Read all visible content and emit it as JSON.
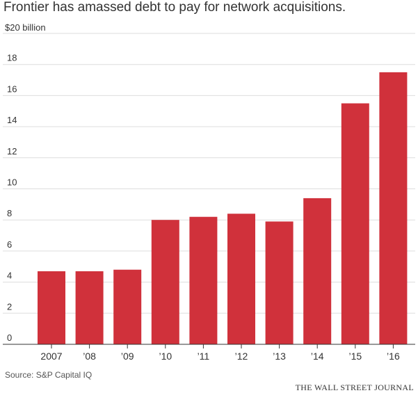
{
  "chart_data": {
    "type": "bar",
    "title": "Frontier has amassed debt to pay for network acquisitions.",
    "xlabel": "",
    "ylabel": "",
    "y_top_label": "$20 billion",
    "categories": [
      "2007",
      "’08",
      "’09",
      "’10",
      "’11",
      "’12",
      "’13",
      "’14",
      "’15",
      "’16"
    ],
    "values": [
      4.7,
      4.7,
      4.8,
      8.0,
      8.2,
      8.4,
      7.9,
      9.4,
      15.5,
      17.5
    ],
    "ylim": [
      0,
      20
    ],
    "yticks": [
      "0",
      "2",
      "4",
      "6",
      "8",
      "10",
      "12",
      "14",
      "16",
      "18"
    ],
    "grid": true,
    "bar_color": "#d0313b"
  },
  "source": "Source: S&P Capital IQ",
  "publisher": "THE WALL STREET JOURNAL"
}
